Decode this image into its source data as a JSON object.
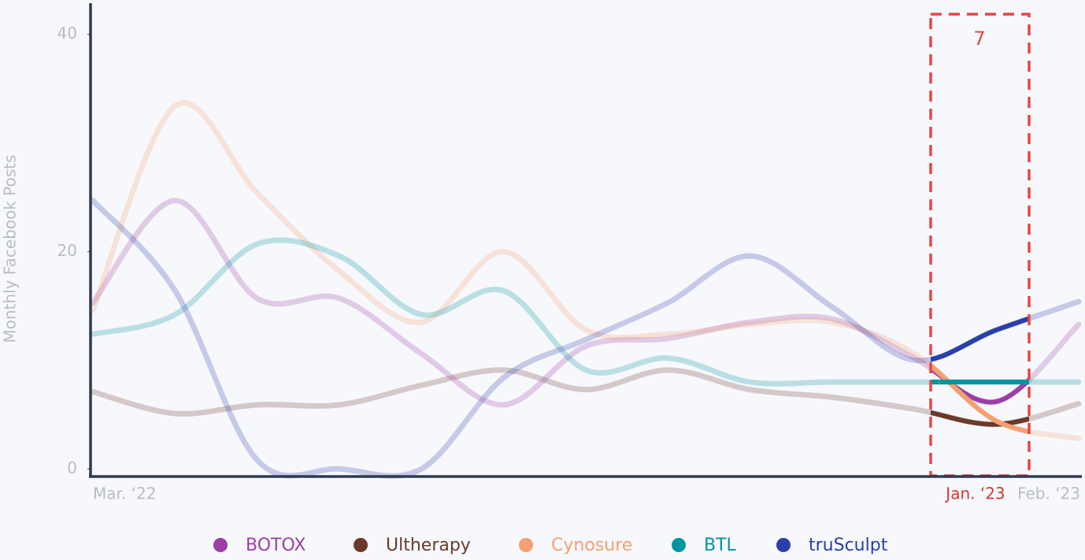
{
  "chart_data": {
    "type": "line",
    "y_label": "Monthly Facebook Posts",
    "categories": [
      "Mar. ‘22",
      null,
      null,
      null,
      null,
      null,
      null,
      null,
      null,
      null,
      null,
      "Jan. ‘23",
      "Feb. ‘23"
    ],
    "series": [
      {
        "name": "BOTOX",
        "color": "#9b3fa6",
        "values": [
          15.3,
          24.7,
          15.7,
          15.7,
          10.6,
          5.9,
          11.3,
          12.0,
          13.5,
          13.8,
          10.2,
          6.2,
          13.3
        ]
      },
      {
        "name": "Ultherapy",
        "color": "#6b3a2a",
        "values": [
          7.1,
          5.1,
          5.9,
          5.9,
          7.7,
          9.1,
          7.3,
          9.1,
          7.3,
          6.6,
          5.5,
          4.1,
          6.0
        ]
      },
      {
        "name": "Cynosure",
        "color": "#f4a070",
        "values": [
          14.6,
          33.4,
          25.4,
          18.2,
          13.5,
          20.0,
          12.8,
          12.4,
          13.3,
          13.5,
          10.6,
          4.4,
          2.8
        ]
      },
      {
        "name": "BTL",
        "color": "#00959e",
        "values": [
          12.4,
          14.2,
          20.7,
          19.6,
          14.2,
          16.4,
          9.1,
          10.2,
          8.0,
          8.0,
          8.0,
          8.0,
          8.0
        ]
      },
      {
        "name": "truSculpt",
        "color": "#2a3fa8",
        "values": [
          24.7,
          16.4,
          0.8,
          0,
          0,
          8.4,
          11.9,
          15.3,
          19.6,
          14.9,
          10.0,
          12.8,
          15.4
        ]
      }
    ],
    "ylim": [
      -0.7,
      42.8
    ],
    "yticks": [
      0,
      20,
      40
    ],
    "grid": false,
    "annotation": "7"
  }
}
